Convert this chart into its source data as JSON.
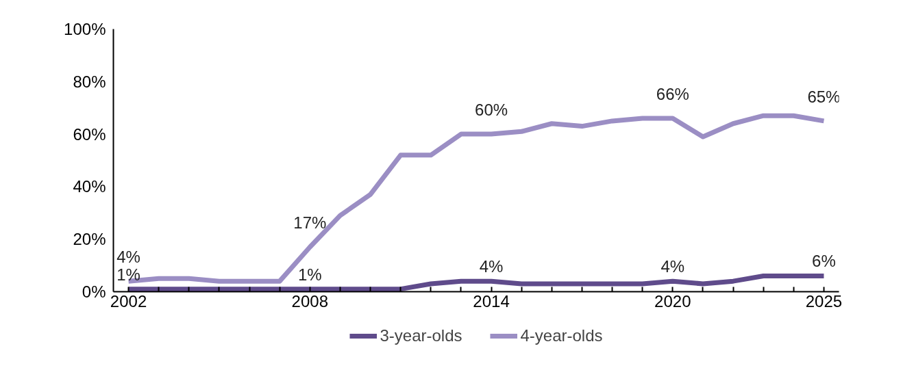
{
  "chart_data": {
    "type": "line",
    "x": [
      2002,
      2003,
      2004,
      2005,
      2006,
      2007,
      2008,
      2009,
      2010,
      2011,
      2012,
      2013,
      2014,
      2015,
      2016,
      2017,
      2018,
      2019,
      2020,
      2021,
      2022,
      2023,
      2024,
      2025
    ],
    "series": [
      {
        "name": "3-year-olds",
        "color": "#5f4b8b",
        "values": [
          1,
          1,
          1,
          1,
          1,
          1,
          1,
          1,
          1,
          1,
          3,
          4,
          4,
          3,
          3,
          3,
          3,
          3,
          4,
          3,
          4,
          6,
          6,
          6
        ],
        "value_labels": [
          "1%",
          null,
          null,
          null,
          null,
          null,
          "1%",
          null,
          null,
          null,
          null,
          null,
          "4%",
          null,
          null,
          null,
          null,
          null,
          "4%",
          null,
          null,
          null,
          null,
          "6%"
        ]
      },
      {
        "name": "4-year-olds",
        "color": "#9b8ec4",
        "values": [
          4,
          5,
          5,
          4,
          4,
          4,
          17,
          29,
          37,
          52,
          52,
          60,
          60,
          61,
          64,
          63,
          65,
          66,
          66,
          59,
          64,
          67,
          67,
          65
        ],
        "value_labels": [
          "4%",
          null,
          null,
          null,
          null,
          null,
          "17%",
          null,
          null,
          null,
          null,
          null,
          "60%",
          null,
          null,
          null,
          null,
          null,
          "66%",
          null,
          null,
          null,
          null,
          "65%"
        ]
      }
    ],
    "xlim": [
      2001.5,
      2025.5
    ],
    "xticks": [
      2002,
      {
        "value": 2003,
        "label": null
      },
      {
        "value": 2004,
        "label": null
      },
      {
        "value": 2005,
        "label": null
      },
      {
        "value": 2006,
        "label": null
      },
      {
        "value": 2007,
        "label": null
      },
      2008,
      {
        "value": 2009,
        "label": null
      },
      {
        "value": 2010,
        "label": null
      },
      {
        "value": 2011,
        "label": null
      },
      {
        "value": 2012,
        "label": null
      },
      {
        "value": 2013,
        "label": null
      },
      2014,
      {
        "value": 2015,
        "label": null
      },
      {
        "value": 2016,
        "label": null
      },
      {
        "value": 2017,
        "label": null
      },
      {
        "value": 2018,
        "label": null
      },
      {
        "value": 2019,
        "label": null
      },
      2020,
      {
        "value": 2021,
        "label": null
      },
      {
        "value": 2022,
        "label": null
      },
      {
        "value": 2023,
        "label": null
      },
      {
        "value": 2024,
        "label": null
      },
      2025
    ],
    "ylim": [
      0,
      100
    ],
    "yticks": [
      {
        "value": 0,
        "label": "0%"
      },
      {
        "value": 20,
        "label": "20%"
      },
      {
        "value": 40,
        "label": "40%"
      },
      {
        "value": 60,
        "label": "60%"
      },
      {
        "value": 80,
        "label": "80%"
      },
      {
        "value": 100,
        "label": "100%"
      }
    ],
    "grid": false,
    "legend": "bottom",
    "marker": "none",
    "line_style": "solid"
  }
}
